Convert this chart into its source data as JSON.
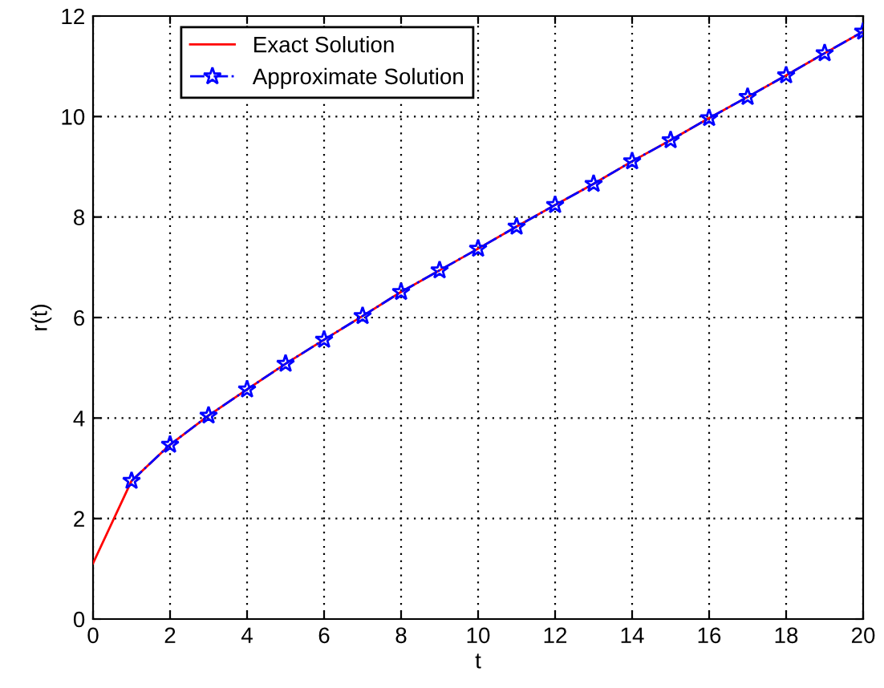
{
  "chart_data": {
    "type": "line",
    "xlabel": "t",
    "ylabel": "r(t)",
    "xlim": [
      0,
      20
    ],
    "ylim": [
      0,
      12
    ],
    "xticks": [
      0,
      2,
      4,
      6,
      8,
      10,
      12,
      14,
      16,
      18,
      20
    ],
    "yticks": [
      0,
      2,
      4,
      6,
      8,
      10,
      12
    ],
    "grid": true,
    "legend": "top left",
    "series": [
      {
        "name": "Exact Solution",
        "color": "#ff0000",
        "marker": "none",
        "line_style": "solid",
        "x": [
          0,
          1,
          2,
          3,
          4,
          5,
          6,
          7,
          8,
          9,
          10,
          11,
          12,
          13,
          14,
          15,
          16,
          17,
          18,
          19,
          20
        ],
        "values": [
          1.11,
          2.75,
          3.47,
          4.05,
          4.57,
          5.08,
          5.56,
          6.03,
          6.51,
          6.94,
          7.37,
          7.81,
          8.24,
          8.66,
          9.11,
          9.53,
          9.97,
          10.39,
          10.82,
          11.26,
          11.69
        ]
      },
      {
        "name": "Approximate Solution",
        "color": "#0000ff",
        "marker": "star",
        "line_style": "dashed",
        "x": [
          1,
          2,
          3,
          4,
          5,
          6,
          7,
          8,
          9,
          10,
          11,
          12,
          13,
          14,
          15,
          16,
          17,
          18,
          19,
          20
        ],
        "values": [
          2.75,
          3.47,
          4.05,
          4.57,
          5.08,
          5.56,
          6.03,
          6.51,
          6.94,
          7.37,
          7.81,
          8.24,
          8.66,
          9.11,
          9.53,
          9.97,
          10.39,
          10.82,
          11.26,
          11.69
        ]
      }
    ]
  }
}
